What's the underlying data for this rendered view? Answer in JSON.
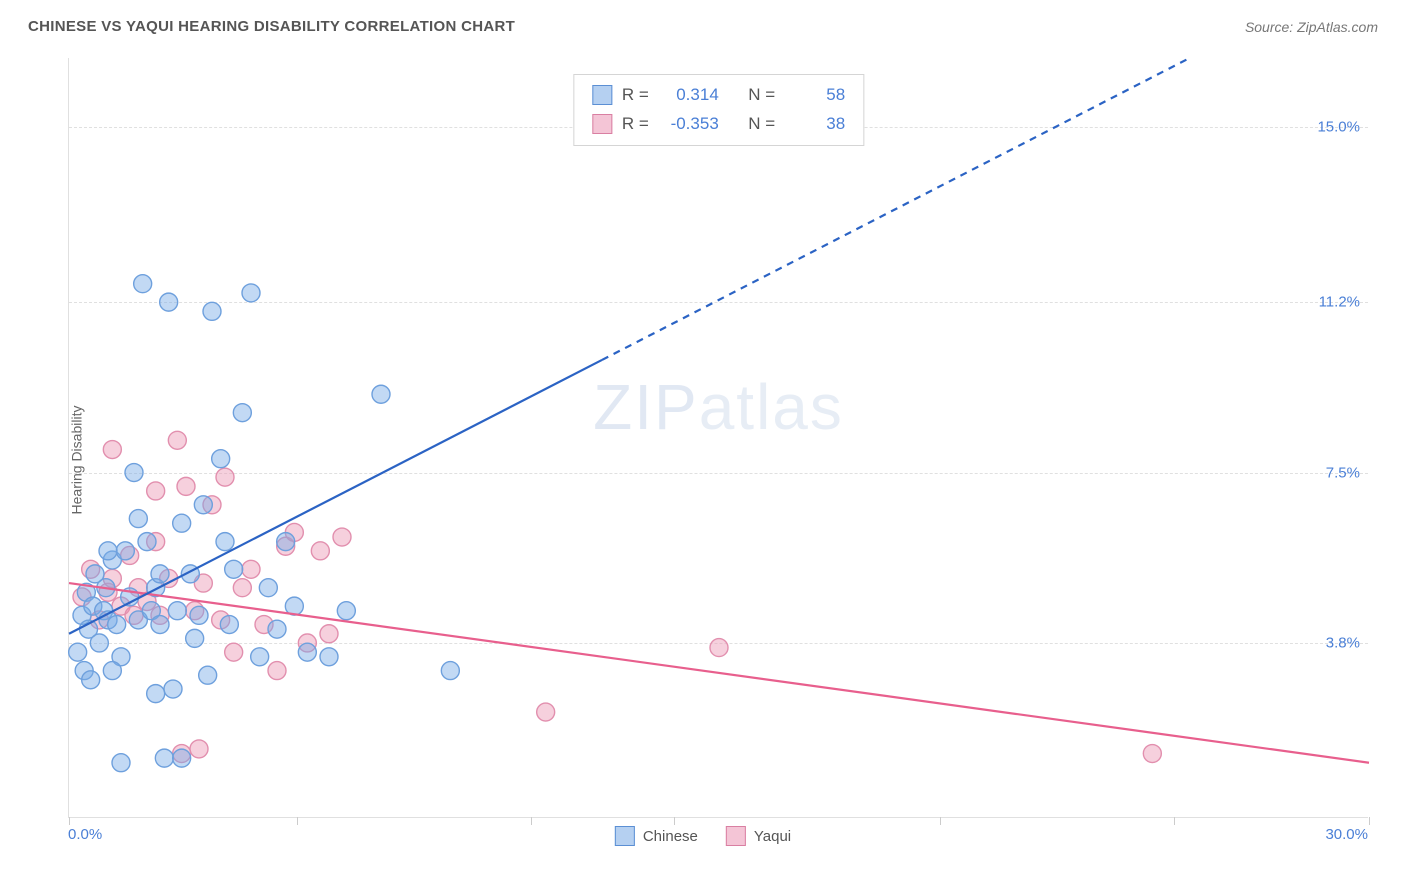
{
  "header": {
    "title": "CHINESE VS YAQUI HEARING DISABILITY CORRELATION CHART",
    "source": "Source: ZipAtlas.com"
  },
  "ylabel": "Hearing Disability",
  "watermark_a": "ZIP",
  "watermark_b": "atlas",
  "chart": {
    "type": "scatter",
    "xlim": [
      0,
      30
    ],
    "ylim": [
      0,
      16.5
    ],
    "x_tick_positions_pct": [
      0,
      17.5,
      35.5,
      46.5,
      67,
      85,
      100
    ],
    "x_axis": {
      "min_label": "0.0%",
      "max_label": "30.0%"
    },
    "y_gridlines": [
      3.8,
      7.5,
      11.2,
      15.0
    ],
    "y_tick_labels": [
      "3.8%",
      "7.5%",
      "11.2%",
      "15.0%"
    ],
    "background_color": "#ffffff",
    "grid_color": "#e0e0e0",
    "tick_label_color": "#4a7fd6",
    "marker_radius": 9,
    "marker_stroke_width": 1.4,
    "line_stroke_width": 2.2,
    "series": {
      "blue": {
        "label": "Chinese",
        "fill_color": "rgba(120,170,230,0.45)",
        "stroke_color": "#6ea0dd",
        "R": "0.314",
        "N": "58",
        "trend": {
          "x1": 0,
          "y1": 4.0,
          "x2": 30,
          "y2": 18.5,
          "solid_until_x": 12.3,
          "color": "#2b63c4"
        },
        "points": [
          [
            0.2,
            3.6
          ],
          [
            0.3,
            4.4
          ],
          [
            0.35,
            3.2
          ],
          [
            0.4,
            4.9
          ],
          [
            0.45,
            4.1
          ],
          [
            0.5,
            3.0
          ],
          [
            0.55,
            4.6
          ],
          [
            0.6,
            5.3
          ],
          [
            0.7,
            3.8
          ],
          [
            0.8,
            4.5
          ],
          [
            0.85,
            5.0
          ],
          [
            0.9,
            4.3
          ],
          [
            1.0,
            5.6
          ],
          [
            1.1,
            4.2
          ],
          [
            1.2,
            3.5
          ],
          [
            1.3,
            5.8
          ],
          [
            1.4,
            4.8
          ],
          [
            1.5,
            7.5
          ],
          [
            1.6,
            4.3
          ],
          [
            1.7,
            11.6
          ],
          [
            1.8,
            6.0
          ],
          [
            1.9,
            4.5
          ],
          [
            2.0,
            5.0
          ],
          [
            2.1,
            4.2
          ],
          [
            2.3,
            11.2
          ],
          [
            2.4,
            2.8
          ],
          [
            2.5,
            4.5
          ],
          [
            2.6,
            6.4
          ],
          [
            2.8,
            5.3
          ],
          [
            3.0,
            4.4
          ],
          [
            3.2,
            3.1
          ],
          [
            3.3,
            11.0
          ],
          [
            3.5,
            7.8
          ],
          [
            3.7,
            4.2
          ],
          [
            3.8,
            5.4
          ],
          [
            4.0,
            8.8
          ],
          [
            4.2,
            11.4
          ],
          [
            4.4,
            3.5
          ],
          [
            4.6,
            5.0
          ],
          [
            4.8,
            4.1
          ],
          [
            5.0,
            6.0
          ],
          [
            5.2,
            4.6
          ],
          [
            5.5,
            3.6
          ],
          [
            1.0,
            3.2
          ],
          [
            1.2,
            1.2
          ],
          [
            2.2,
            1.3
          ],
          [
            2.6,
            1.3
          ],
          [
            6.0,
            3.5
          ],
          [
            6.4,
            4.5
          ],
          [
            7.2,
            9.2
          ],
          [
            2.0,
            2.7
          ],
          [
            2.1,
            5.3
          ],
          [
            1.6,
            6.5
          ],
          [
            0.9,
            5.8
          ],
          [
            3.1,
            6.8
          ],
          [
            2.9,
            3.9
          ],
          [
            8.8,
            3.2
          ],
          [
            3.6,
            6.0
          ]
        ]
      },
      "pink": {
        "label": "Yaqui",
        "fill_color": "rgba(235,150,180,0.45)",
        "stroke_color": "#e28fae",
        "R": "-0.353",
        "N": "38",
        "trend": {
          "x1": 0,
          "y1": 5.1,
          "x2": 30,
          "y2": 1.2,
          "color": "#e85f8d"
        },
        "points": [
          [
            0.3,
            4.8
          ],
          [
            0.5,
            5.4
          ],
          [
            0.7,
            4.3
          ],
          [
            0.9,
            4.9
          ],
          [
            1.0,
            5.2
          ],
          [
            1.2,
            4.6
          ],
          [
            1.4,
            5.7
          ],
          [
            1.5,
            4.4
          ],
          [
            1.6,
            5.0
          ],
          [
            1.8,
            4.7
          ],
          [
            2.0,
            6.0
          ],
          [
            2.1,
            4.4
          ],
          [
            2.3,
            5.2
          ],
          [
            2.5,
            8.2
          ],
          [
            2.7,
            7.2
          ],
          [
            2.9,
            4.5
          ],
          [
            3.1,
            5.1
          ],
          [
            3.3,
            6.8
          ],
          [
            3.5,
            4.3
          ],
          [
            3.6,
            7.4
          ],
          [
            3.8,
            3.6
          ],
          [
            4.0,
            5.0
          ],
          [
            4.2,
            5.4
          ],
          [
            4.5,
            4.2
          ],
          [
            4.8,
            3.2
          ],
          [
            5.0,
            5.9
          ],
          [
            5.2,
            6.2
          ],
          [
            5.5,
            3.8
          ],
          [
            5.8,
            5.8
          ],
          [
            6.0,
            4.0
          ],
          [
            6.3,
            6.1
          ],
          [
            3.0,
            1.5
          ],
          [
            2.6,
            1.4
          ],
          [
            11.0,
            2.3
          ],
          [
            15.0,
            3.7
          ],
          [
            25.0,
            1.4
          ],
          [
            1.0,
            8.0
          ],
          [
            2.0,
            7.1
          ]
        ]
      }
    }
  },
  "stats_box": {
    "r_label": "R =",
    "n_label": "N ="
  },
  "bottom_legend": {
    "items": [
      "Chinese",
      "Yaqui"
    ]
  }
}
